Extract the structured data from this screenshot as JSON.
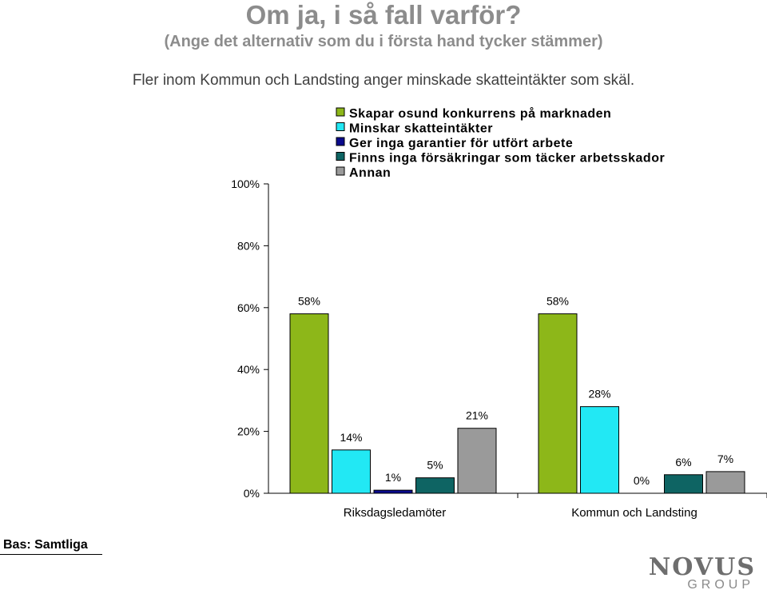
{
  "header": {
    "title": "Om ja, i så fall varför?",
    "subtitle": "(Ange det alternativ som du i första hand tycker stämmer)",
    "caption": "Fler inom Kommun och Landsting anger minskade skatteintäkter som skäl."
  },
  "footer": {
    "base_label": "Bas: Samtliga",
    "logo_main": "NOVUS",
    "logo_sub": "GROUP"
  },
  "chart_data": {
    "type": "bar",
    "categories": [
      "Riksdagsledamöter",
      "Kommun och Landsting"
    ],
    "series": [
      {
        "name": "Skapar osund konkurrens på marknaden",
        "color": "#8db719",
        "values": [
          58,
          58
        ]
      },
      {
        "name": "Minskar skatteintäkter",
        "color": "#22e8f4",
        "values": [
          14,
          28
        ]
      },
      {
        "name": "Ger inga garantier för utfört arbete",
        "color": "#0a0a8c",
        "values": [
          1,
          0
        ]
      },
      {
        "name": "Finns inga försäkringar som täcker arbetsskador",
        "color": "#0e6463",
        "values": [
          5,
          6
        ]
      },
      {
        "name": "Annan",
        "color": "#9a9a9a",
        "values": [
          21,
          7
        ]
      }
    ],
    "value_labels": [
      [
        "58%",
        "14%",
        "1%",
        "5%",
        "21%"
      ],
      [
        "58%",
        "28%",
        "0%",
        "6%",
        "7%"
      ]
    ],
    "yticks": [
      "0%",
      "20%",
      "40%",
      "60%",
      "80%",
      "100%"
    ],
    "ylim": [
      0,
      100
    ],
    "legend_position": "top",
    "grid": false
  }
}
